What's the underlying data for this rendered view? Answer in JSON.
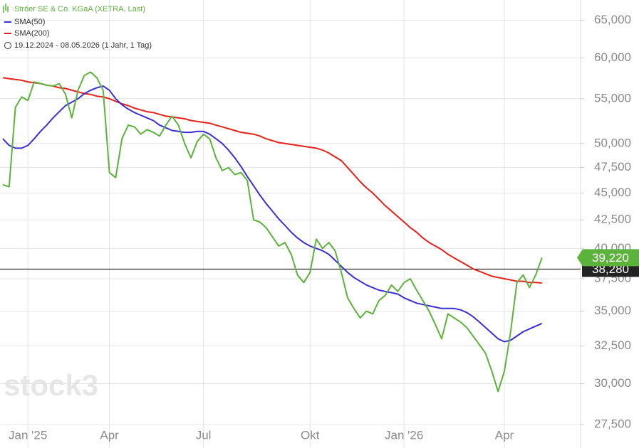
{
  "chart_data": {
    "type": "line",
    "log_scale": true,
    "grid": true,
    "legend": [
      "Ströer SE & Co. KGaA (XETRA, Last)",
      "SMA(50)",
      "SMA(200)"
    ],
    "date_range": "19.12.2024 - 08.05.2026 (1 Jahr, 1 Tag)",
    "watermark": "stock3",
    "categories": [
      null,
      null,
      null,
      null,
      "Jan '25",
      null,
      null,
      null,
      null,
      null,
      null,
      null,
      null,
      null,
      null,
      null,
      null,
      "Apr",
      null,
      null,
      null,
      null,
      null,
      null,
      null,
      null,
      null,
      null,
      null,
      null,
      null,
      null,
      "Jul",
      null,
      null,
      null,
      null,
      null,
      null,
      null,
      null,
      null,
      null,
      null,
      null,
      null,
      null,
      null,
      null,
      "Okt",
      null,
      null,
      null,
      null,
      null,
      null,
      null,
      null,
      null,
      null,
      null,
      null,
      null,
      null,
      "Jan '26",
      null,
      null,
      null,
      null,
      null,
      null,
      null,
      null,
      null,
      null,
      null,
      null,
      null,
      null,
      null,
      "Apr",
      null,
      null,
      null,
      null,
      null,
      null
    ],
    "series": [
      {
        "name": "Ströer SE & Co. KGaA (XETRA, Last)",
        "color": "#5cb33b",
        "last_label": "39,220",
        "values": [
          45800,
          45600,
          54000,
          55200,
          54800,
          57000,
          56800,
          56600,
          56500,
          56800,
          55500,
          52800,
          56000,
          57800,
          58200,
          57500,
          56000,
          47000,
          46500,
          50500,
          52000,
          51800,
          51000,
          51500,
          51200,
          50800,
          52000,
          53000,
          52000,
          50000,
          48500,
          50200,
          51000,
          50500,
          48500,
          47200,
          47500,
          46800,
          47000,
          46200,
          42500,
          42300,
          41800,
          41000,
          40200,
          40500,
          39500,
          37800,
          37200,
          38000,
          40800,
          40000,
          40500,
          39800,
          38000,
          36000,
          35200,
          34500,
          35000,
          34800,
          35800,
          36200,
          37000,
          36500,
          37200,
          37500,
          36600,
          35800,
          35000,
          34000,
          33000,
          34800,
          34500,
          34200,
          33800,
          33200,
          32600,
          32000,
          30800,
          29500,
          30800,
          33500,
          37200,
          37800,
          36800,
          37800,
          39220
        ]
      },
      {
        "name": "SMA(50)",
        "color": "#3a2fd6",
        "values": [
          50500,
          49800,
          49500,
          49500,
          49800,
          50500,
          51300,
          52000,
          52800,
          53500,
          54200,
          54600,
          55000,
          55600,
          56000,
          56300,
          56500,
          56000,
          55000,
          54300,
          53800,
          53400,
          53100,
          52800,
          52500,
          52000,
          51700,
          51400,
          51300,
          51200,
          51200,
          51300,
          51300,
          51000,
          50500,
          50000,
          49300,
          48500,
          47600,
          46600,
          45700,
          44800,
          44000,
          43300,
          42600,
          42000,
          41400,
          40900,
          40500,
          40200,
          40000,
          39800,
          39500,
          39000,
          38500,
          38000,
          37600,
          37300,
          37000,
          36800,
          36600,
          36500,
          36400,
          36300,
          36000,
          35800,
          35600,
          35500,
          35400,
          35300,
          35200,
          35200,
          35200,
          35100,
          34900,
          34600,
          34200,
          33800,
          33400,
          33000,
          32800,
          32900,
          33200,
          33500,
          33700,
          33900,
          34100
        ]
      },
      {
        "name": "SMA(200)",
        "color": "#e8201a",
        "values": [
          57500,
          57400,
          57300,
          57200,
          57000,
          56900,
          56800,
          56600,
          56500,
          56300,
          56200,
          56000,
          55800,
          55600,
          55500,
          55300,
          55200,
          55000,
          54700,
          54400,
          54200,
          53900,
          53700,
          53500,
          53400,
          53200,
          53000,
          52900,
          52800,
          52700,
          52500,
          52400,
          52300,
          52200,
          52000,
          51800,
          51600,
          51400,
          51200,
          51100,
          51000,
          50800,
          50500,
          50300,
          50100,
          50000,
          49900,
          49800,
          49700,
          49600,
          49500,
          49300,
          49000,
          48600,
          48200,
          47500,
          46800,
          46100,
          45500,
          45000,
          44400,
          43800,
          43300,
          42800,
          42300,
          41800,
          41400,
          40900,
          40500,
          40200,
          39900,
          39500,
          39200,
          38900,
          38600,
          38300,
          38100,
          37900,
          37700,
          37600,
          37500,
          37400,
          37300,
          37300,
          37200,
          37200,
          37160
        ]
      }
    ],
    "reference_line": {
      "value": 38280,
      "label": "38,280"
    },
    "ylim": [
      26160,
      67850
    ],
    "yticks": [
      {
        "value": 27500,
        "label": "27,500"
      },
      {
        "value": 30000,
        "label": "30,000"
      },
      {
        "value": 32500,
        "label": "32,500"
      },
      {
        "value": 35000,
        "label": "35,000"
      },
      {
        "value": 37500,
        "label": "37,500"
      },
      {
        "value": 40000,
        "label": "40,000"
      },
      {
        "value": 42500,
        "label": "42,500"
      },
      {
        "value": 45000,
        "label": "45,000"
      },
      {
        "value": 47500,
        "label": "47,500"
      },
      {
        "value": 50000,
        "label": "50,000"
      },
      {
        "value": 55000,
        "label": "55,000"
      },
      {
        "value": 60000,
        "label": "60,000"
      },
      {
        "value": 65000,
        "label": "65,000"
      }
    ]
  }
}
